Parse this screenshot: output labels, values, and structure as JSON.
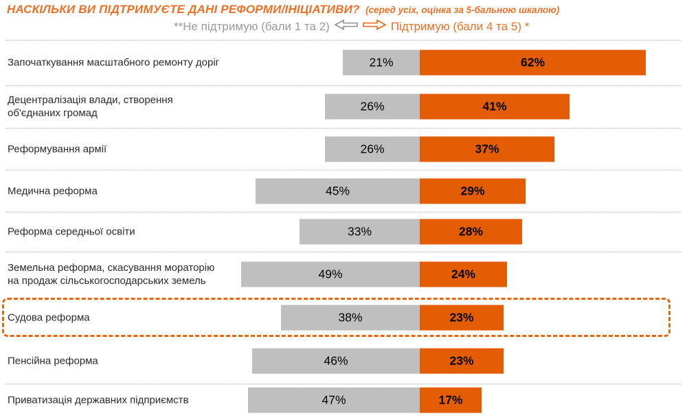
{
  "title": {
    "main": "НАСКІЛЬКИ ВИ  ПІДТРИМУЄТЕ ДАНІ РЕФОРМИ/ІНІЦІАТИВИ?",
    "note": "(серед усіх, оцінка за 5-бальною шкалою)"
  },
  "legend": {
    "oppose_label": "**Не підтримую (бали 1 та 2)",
    "support_label": "Підтримую (бали 4 та 5) *",
    "left_arrow_icon": "block-arrow-left",
    "right_arrow_icon": "block-arrow-right"
  },
  "colors": {
    "support_orange": "#E45C04",
    "oppose_gray": "#BFBFBF",
    "title_orange": "#ED7026",
    "legend_gray": "#9B9B9B",
    "box_orange": "#E8650D",
    "arrow_gray": "#8F8F8F"
  },
  "chart_data": {
    "type": "bar",
    "variant": "diverging-horizontal",
    "unit": "%",
    "title": "НАСКІЛЬКИ ВИ ПІДТРИМУЄТЕ ДАНІ РЕФОРМИ/ІНІЦІАТИВИ? (серед усіх, оцінка за 5-бальною шкалою)",
    "legend_position": "top",
    "value_labels": "inside-bars",
    "categories": [
      "Започаткування масштабного ремонту доріг",
      "Децентралізація  влади, створення об'єднаних громад",
      "Реформування армії",
      "Медична реформа",
      "Реформа середньої освіти",
      "Земельна реформа, скасування мораторію на продаж сільськогосподарських земель",
      "Судова реформа",
      "Пенсійна реформа",
      "Приватизація державних підприємств"
    ],
    "series": [
      {
        "name": "Не підтримую (бали 1 та 2)",
        "color": "#BFBFBF",
        "values": [
          21,
          26,
          26,
          45,
          33,
          49,
          38,
          46,
          47
        ]
      },
      {
        "name": "Підтримую (бали 4 та 5)",
        "color": "#E45C04",
        "values": [
          62,
          41,
          37,
          29,
          28,
          24,
          23,
          23,
          17
        ]
      }
    ],
    "highlighted_category": "Судова реформа"
  }
}
